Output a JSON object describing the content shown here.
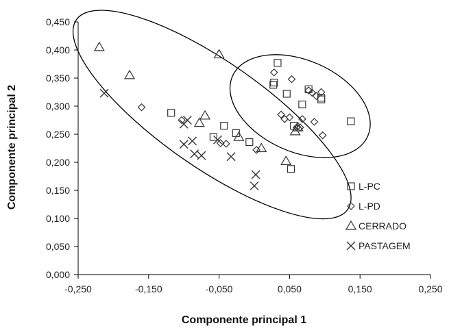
{
  "chart_data": {
    "type": "scatter",
    "title": "",
    "xlabel": "Componente principal 1",
    "ylabel": "Componente principal 2",
    "xlim": [
      -0.25,
      0.25
    ],
    "ylim": [
      0.0,
      0.45
    ],
    "xticks": [
      "-0,250",
      "-0,150",
      "-0,050",
      "0,050",
      "0,150",
      "0,250"
    ],
    "yticks": [
      "0,000",
      "0,050",
      "0,100",
      "0,150",
      "0,200",
      "0,250",
      "0,300",
      "0,350",
      "0,400",
      "0,450"
    ],
    "grid": false,
    "legend_position": "right",
    "series": [
      {
        "name": "L-PC",
        "marker": "square",
        "points": [
          [
            -0.118,
            0.288
          ],
          [
            -0.058,
            0.245
          ],
          [
            -0.043,
            0.265
          ],
          [
            -0.026,
            0.252
          ],
          [
            -0.007,
            0.236
          ],
          [
            0.027,
            0.338
          ],
          [
            0.028,
            0.342
          ],
          [
            0.033,
            0.377
          ],
          [
            0.046,
            0.322
          ],
          [
            0.052,
            0.188
          ],
          [
            0.056,
            0.265
          ],
          [
            0.068,
            0.303
          ],
          [
            0.077,
            0.33
          ],
          [
            0.095,
            0.312
          ],
          [
            0.095,
            0.315
          ],
          [
            0.137,
            0.273
          ]
        ]
      },
      {
        "name": "L-PD",
        "marker": "diamond",
        "points": [
          [
            -0.16,
            0.298
          ],
          [
            -0.103,
            0.275
          ],
          [
            -0.048,
            0.234
          ],
          [
            -0.04,
            0.233
          ],
          [
            0.003,
            0.222
          ],
          [
            0.028,
            0.36
          ],
          [
            0.038,
            0.285
          ],
          [
            0.043,
            0.277
          ],
          [
            0.05,
            0.28
          ],
          [
            0.053,
            0.348
          ],
          [
            0.06,
            0.262
          ],
          [
            0.065,
            0.262
          ],
          [
            0.068,
            0.277
          ],
          [
            0.077,
            0.328
          ],
          [
            0.082,
            0.324
          ],
          [
            0.085,
            0.272
          ],
          [
            0.088,
            0.318
          ],
          [
            0.095,
            0.325
          ],
          [
            0.097,
            0.248
          ]
        ]
      },
      {
        "name": "CERRADO",
        "marker": "triangle",
        "points": [
          [
            -0.22,
            0.405
          ],
          [
            -0.177,
            0.355
          ],
          [
            -0.078,
            0.27
          ],
          [
            -0.07,
            0.283
          ],
          [
            -0.05,
            0.392
          ],
          [
            -0.022,
            0.245
          ],
          [
            0.01,
            0.225
          ],
          [
            0.045,
            0.202
          ],
          [
            0.058,
            0.255
          ],
          [
            0.062,
            0.262
          ]
        ]
      },
      {
        "name": "PASTAGEM",
        "marker": "x",
        "points": [
          [
            -0.213,
            0.323
          ],
          [
            -0.1,
            0.268
          ],
          [
            -0.1,
            0.232
          ],
          [
            -0.095,
            0.275
          ],
          [
            -0.088,
            0.238
          ],
          [
            -0.085,
            0.215
          ],
          [
            -0.075,
            0.212
          ],
          [
            -0.052,
            0.24
          ],
          [
            -0.033,
            0.21
          ],
          [
            0.002,
            0.178
          ],
          [
            0.0,
            0.158
          ]
        ]
      }
    ],
    "ellipses": [
      {
        "cx": -0.06,
        "cy": 0.285,
        "rx": 0.235,
        "ry": 0.075,
        "rotate_deg": 35
      },
      {
        "cx": 0.065,
        "cy": 0.3,
        "rx": 0.105,
        "ry": 0.065,
        "rotate_deg": 24
      }
    ]
  }
}
